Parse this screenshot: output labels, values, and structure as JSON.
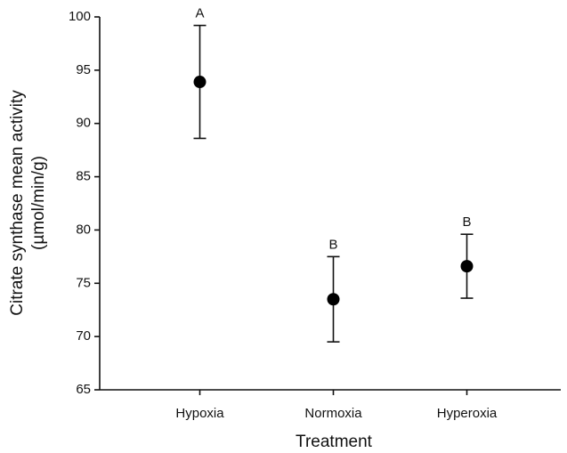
{
  "chart_data": {
    "type": "errorpoint",
    "xlabel": "Treatment",
    "ylabel": [
      "Citrate synthase mean activity",
      "(µmol/min/g)"
    ],
    "categories": [
      "Hypoxia",
      "Normoxia",
      "Hyperoxia"
    ],
    "values": [
      93.9,
      73.5,
      76.6
    ],
    "errors": [
      5.3,
      4.0,
      3.0
    ],
    "labels": [
      "A",
      "B",
      "B"
    ],
    "color": "#000000",
    "ylim": [
      65,
      100
    ],
    "yticks": [
      65,
      70,
      75,
      80,
      85,
      90,
      95,
      100
    ],
    "grid": false
  }
}
